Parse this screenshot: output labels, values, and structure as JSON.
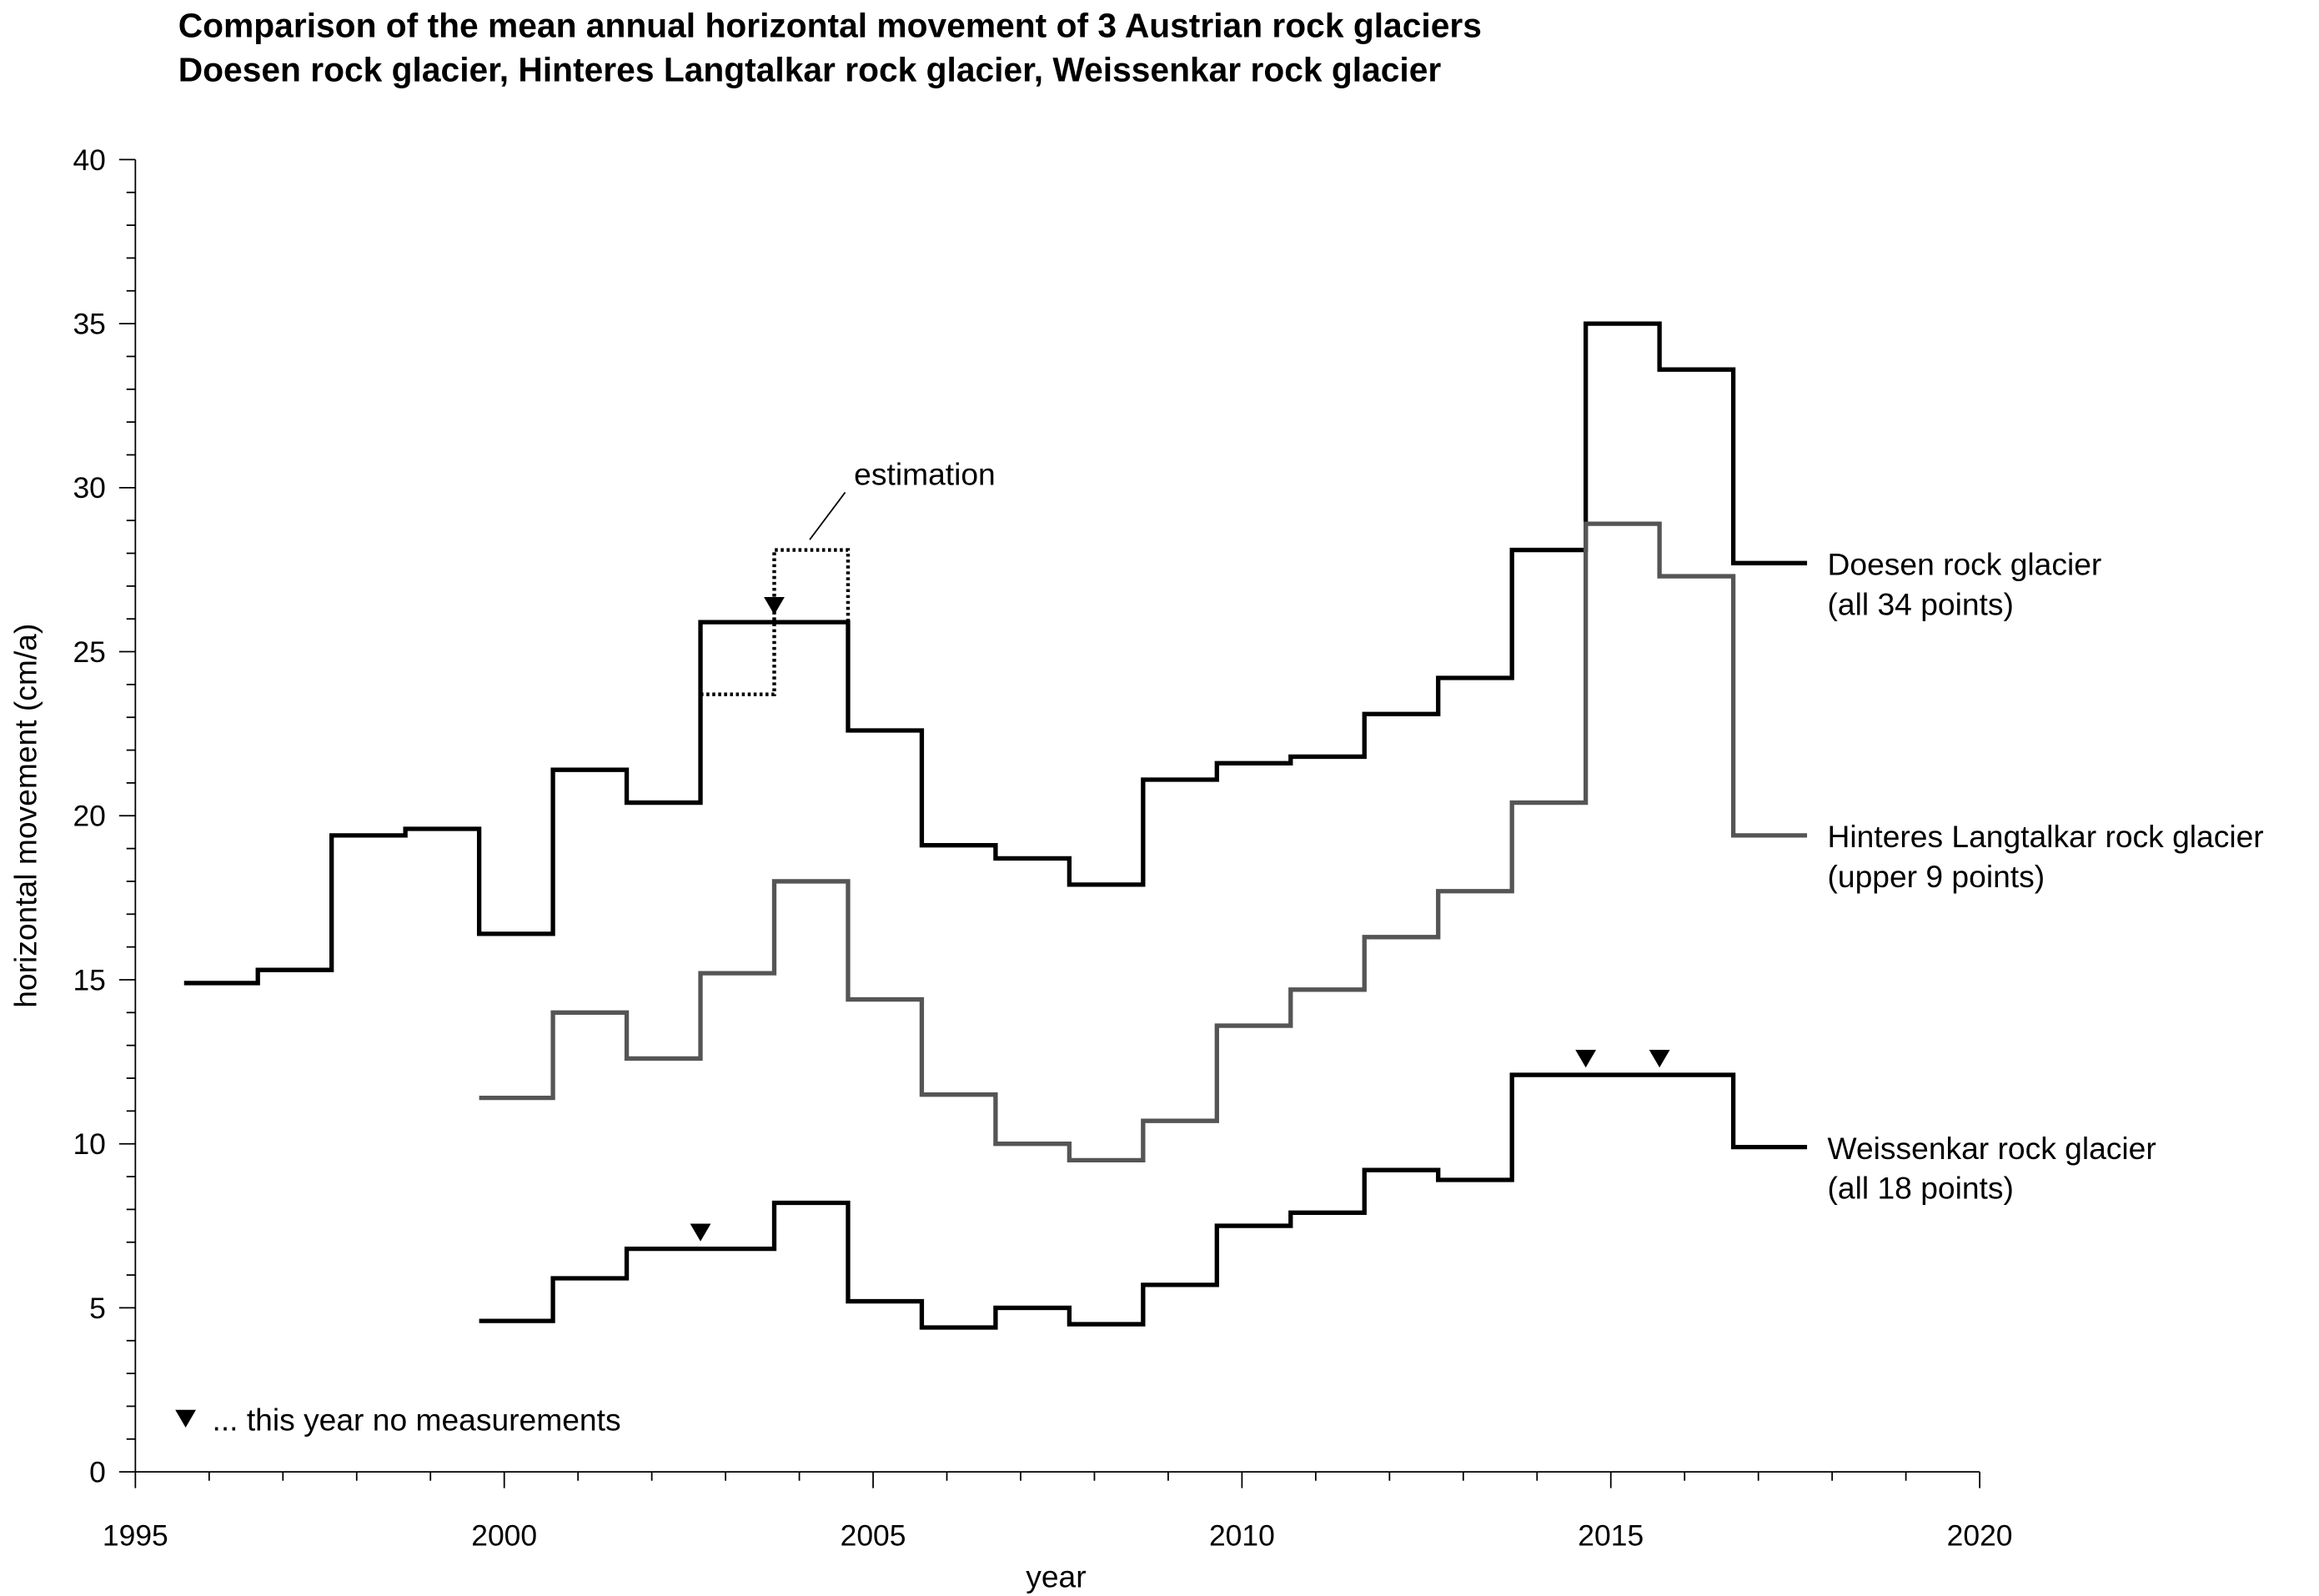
{
  "chart_data": {
    "type": "step",
    "title": "Comparison of the mean annual horizontal movement of 3 Austrian rock glaciers",
    "subtitle": "Doesen rock glacier, Hinteres Langtalkar rock glacier, Weissenkar rock glacier",
    "x_label": "year",
    "y_label": "horizontal movement (cm/a)",
    "xlim": [
      1995,
      2020
    ],
    "xticks": [
      1995,
      2000,
      2005,
      2010,
      2015,
      2020
    ],
    "ylim": [
      0,
      40
    ],
    "yticks": [
      0,
      5,
      10,
      15,
      20,
      25,
      30,
      35,
      40
    ],
    "series": [
      {
        "name": "Doesen rock glacier",
        "note_label": "(all 34 points)",
        "color": "#000000",
        "bins": [
          1995.66,
          1996.66,
          1997.66,
          1998.66,
          1999.66,
          2000.66,
          2001.66,
          2002.66,
          2003.66,
          2004.66,
          2005.66,
          2006.66,
          2007.66,
          2008.66,
          2009.66,
          2010.66,
          2011.66,
          2012.66,
          2013.66,
          2014.66,
          2015.66,
          2016.66,
          2017.66
        ],
        "values": [
          14.9,
          15.3,
          19.4,
          19.6,
          16.4,
          21.4,
          20.4,
          25.9,
          25.9,
          22.6,
          19.1,
          18.7,
          17.9,
          21.1,
          21.6,
          21.8,
          23.1,
          24.2,
          28.1,
          35.0,
          33.6,
          27.7
        ]
      },
      {
        "name": "Hinteres Langtalkar rock glacier",
        "note_label": "(upper 9 points)",
        "color": "#555555",
        "bins": [
          1999.66,
          2000.66,
          2001.66,
          2002.66,
          2003.66,
          2004.66,
          2005.66,
          2006.66,
          2007.66,
          2008.66,
          2009.66,
          2010.66,
          2011.66,
          2012.66,
          2013.66,
          2014.66,
          2015.66,
          2016.66,
          2017.66
        ],
        "values": [
          11.4,
          14.0,
          12.6,
          15.2,
          18.0,
          14.4,
          11.5,
          10.0,
          9.5,
          10.7,
          13.6,
          14.7,
          16.3,
          17.7,
          20.4,
          28.9,
          27.3,
          19.4
        ]
      },
      {
        "name": "Weissenkar rock glacier",
        "note_label": "(all 18 points)",
        "color": "#000000",
        "bins": [
          1999.66,
          2000.66,
          2001.66,
          2002.66,
          2003.66,
          2004.66,
          2005.66,
          2006.66,
          2007.66,
          2008.66,
          2009.66,
          2010.66,
          2011.66,
          2012.66,
          2013.66,
          2014.66,
          2015.66,
          2016.66,
          2017.66
        ],
        "values": [
          4.6,
          5.9,
          6.8,
          6.8,
          8.2,
          5.2,
          4.4,
          5.0,
          4.5,
          5.7,
          7.5,
          7.9,
          9.2,
          8.9,
          12.1,
          12.1,
          12.1,
          9.9
        ]
      }
    ],
    "estimation": {
      "label": "estimation",
      "bins": [
        2002.66,
        2003.66,
        2004.66
      ],
      "values": [
        23.7,
        28.1
      ],
      "joins": 25.9
    },
    "no_measurement": {
      "label": "... this year no measurements",
      "markers": [
        {
          "x": 2003.66,
          "y": 25.9
        },
        {
          "x": 2002.66,
          "y": 6.8
        },
        {
          "x": 2014.66,
          "y": 12.1
        },
        {
          "x": 2015.66,
          "y": 12.1
        }
      ]
    }
  }
}
